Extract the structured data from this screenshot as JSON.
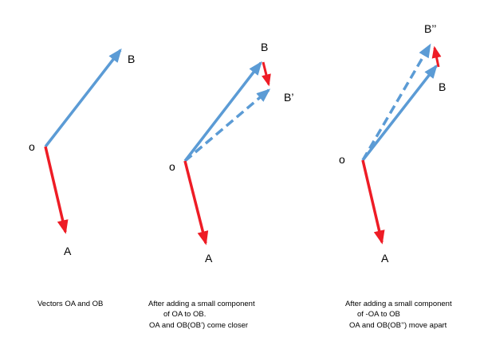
{
  "colors": {
    "blue": "#5b9bd5",
    "red": "#ee1c25",
    "text": "#000000"
  },
  "panels": [
    {
      "labels": {
        "o": "o",
        "a": "A",
        "b": "B",
        "bp": ""
      },
      "caption": [
        "Vectors OA and OB"
      ]
    },
    {
      "labels": {
        "o": "o",
        "a": "A",
        "b": "B",
        "bp": "B’"
      },
      "caption": [
        "After adding a small component",
        "of OA to OB.",
        "OA and OB(OB’) come closer"
      ]
    },
    {
      "labels": {
        "o": "o",
        "a": "A",
        "b": "B",
        "bp": "B’’"
      },
      "caption": [
        "After adding a small component",
        "of -OA to OB",
        "OA and OB(OB’’) move apart"
      ]
    }
  ]
}
